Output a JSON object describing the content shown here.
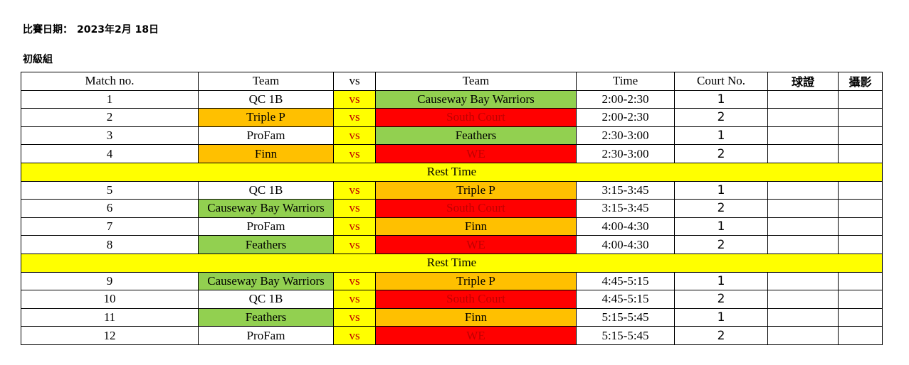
{
  "header": {
    "date_label": "比賽日期：",
    "date_value": "2023年2月 18日",
    "group": "初級組"
  },
  "table": {
    "columns": [
      "Match no.",
      "Team",
      "vs",
      "Team",
      "Time",
      "Court No.",
      "球證",
      "攝影"
    ],
    "rows": [
      {
        "type": "match",
        "no": "1",
        "team1": "QC 1B",
        "team1_color": "white",
        "vs": "vs",
        "team2": "Causeway Bay Warriors",
        "team2_color": "green",
        "time": "2:00-2:30",
        "court": "1",
        "referee": "",
        "photo": ""
      },
      {
        "type": "match",
        "no": "2",
        "team1": "Triple P",
        "team1_color": "orange",
        "vs": "vs",
        "team2": "South Court",
        "team2_color": "red",
        "time": "2:00-2:30",
        "court": "2",
        "referee": "",
        "photo": ""
      },
      {
        "type": "match",
        "no": "3",
        "team1": "ProFam",
        "team1_color": "white",
        "vs": "vs",
        "team2": "Feathers",
        "team2_color": "green",
        "time": "2:30-3:00",
        "court": "1",
        "referee": "",
        "photo": ""
      },
      {
        "type": "match",
        "no": "4",
        "team1": "Finn",
        "team1_color": "orange",
        "vs": "vs",
        "team2": "WE",
        "team2_color": "red",
        "time": "2:30-3:00",
        "court": "2",
        "referee": "",
        "photo": ""
      },
      {
        "type": "rest",
        "label": "Rest Time"
      },
      {
        "type": "match",
        "no": "5",
        "team1": "QC 1B",
        "team1_color": "white",
        "vs": "vs",
        "team2": "Triple P",
        "team2_color": "orange",
        "time": "3:15-3:45",
        "court": "1",
        "referee": "",
        "photo": ""
      },
      {
        "type": "match",
        "no": "6",
        "team1": "Causeway Bay Warriors",
        "team1_color": "green",
        "vs": "vs",
        "team2": "South Court",
        "team2_color": "red",
        "time": "3:15-3:45",
        "court": "2",
        "referee": "",
        "photo": ""
      },
      {
        "type": "match",
        "no": "7",
        "team1": "ProFam",
        "team1_color": "white",
        "vs": "vs",
        "team2": "Finn",
        "team2_color": "orange",
        "time": "4:00-4:30",
        "court": "1",
        "referee": "",
        "photo": ""
      },
      {
        "type": "match",
        "no": "8",
        "team1": "Feathers",
        "team1_color": "green",
        "vs": "vs",
        "team2": "WE",
        "team2_color": "red",
        "time": "4:00-4:30",
        "court": "2",
        "referee": "",
        "photo": ""
      },
      {
        "type": "rest",
        "label": "Rest Time"
      },
      {
        "type": "match",
        "no": "9",
        "team1": "Causeway Bay Warriors",
        "team1_color": "green",
        "vs": "vs",
        "team2": "Triple P",
        "team2_color": "orange",
        "time": "4:45-5:15",
        "court": "1",
        "referee": "",
        "photo": ""
      },
      {
        "type": "match",
        "no": "10",
        "team1": "QC 1B",
        "team1_color": "white",
        "vs": "vs",
        "team2": "South Court",
        "team2_color": "red",
        "time": "4:45-5:15",
        "court": "2",
        "referee": "",
        "photo": ""
      },
      {
        "type": "match",
        "no": "11",
        "team1": "Feathers",
        "team1_color": "green",
        "vs": "vs",
        "team2": "Finn",
        "team2_color": "orange",
        "time": "5:15-5:45",
        "court": "1",
        "referee": "",
        "photo": ""
      },
      {
        "type": "match",
        "no": "12",
        "team1": "ProFam",
        "team1_color": "white",
        "vs": "vs",
        "team2": "WE",
        "team2_color": "red",
        "time": "5:15-5:45",
        "court": "2",
        "referee": "",
        "photo": ""
      }
    ]
  },
  "colors": {
    "white": "#ffffff",
    "green": "#92d050",
    "orange": "#ffc000",
    "red": "#ff0000",
    "yellow": "#ffff00",
    "red_text": "#c00000"
  }
}
